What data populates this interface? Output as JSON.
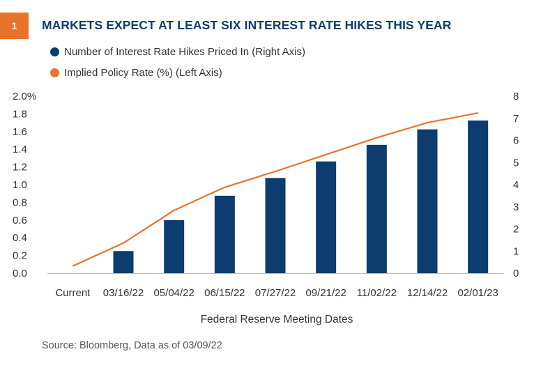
{
  "figure": {
    "number": "1",
    "title": "MARKETS EXPECT AT LEAST SIX INTEREST RATE HIKES THIS YEAR",
    "source": "Source: Bloomberg, Data as of  03/09/22"
  },
  "colors": {
    "badge": "#e8742b",
    "title": "#0d3d6e",
    "bars": "#0d3d6e",
    "line": "#e8742b",
    "text": "#333333"
  },
  "chart_data": {
    "type": "bar",
    "xlabel": "Federal Reserve Meeting Dates",
    "categories": [
      "Current",
      "03/16/22",
      "05/04/22",
      "06/15/22",
      "07/27/22",
      "09/21/22",
      "11/02/22",
      "12/14/22",
      "02/01/23"
    ],
    "series": [
      {
        "name": "Number of Interest Rate Hikes Priced In (Right Axis)",
        "type": "bar",
        "axis": "right",
        "values": [
          0,
          1.0,
          2.4,
          3.5,
          4.3,
          5.05,
          5.8,
          6.5,
          6.9
        ]
      },
      {
        "name": "Implied Policy Rate (%) (Left Axis)",
        "type": "line",
        "axis": "left",
        "values": [
          0.08,
          0.34,
          0.71,
          0.97,
          1.15,
          1.34,
          1.53,
          1.7,
          1.81
        ]
      }
    ],
    "y_left": {
      "ylim": [
        0,
        2.0
      ],
      "ticks": [
        "0.0",
        "0.2",
        "0.4",
        "0.6",
        "0.8",
        "1.0",
        "1.2",
        "1.4",
        "1.6",
        "1.8",
        "2.0%"
      ],
      "tick_values": [
        0,
        0.2,
        0.4,
        0.6,
        0.8,
        1.0,
        1.2,
        1.4,
        1.6,
        1.8,
        2.0
      ]
    },
    "y_right": {
      "ylim": [
        0,
        8
      ],
      "ticks": [
        "0",
        "1",
        "2",
        "3",
        "4",
        "5",
        "6",
        "7",
        "8"
      ],
      "tick_values": [
        0,
        1,
        2,
        3,
        4,
        5,
        6,
        7,
        8
      ]
    },
    "grid": false,
    "legend_position": "top-left"
  }
}
